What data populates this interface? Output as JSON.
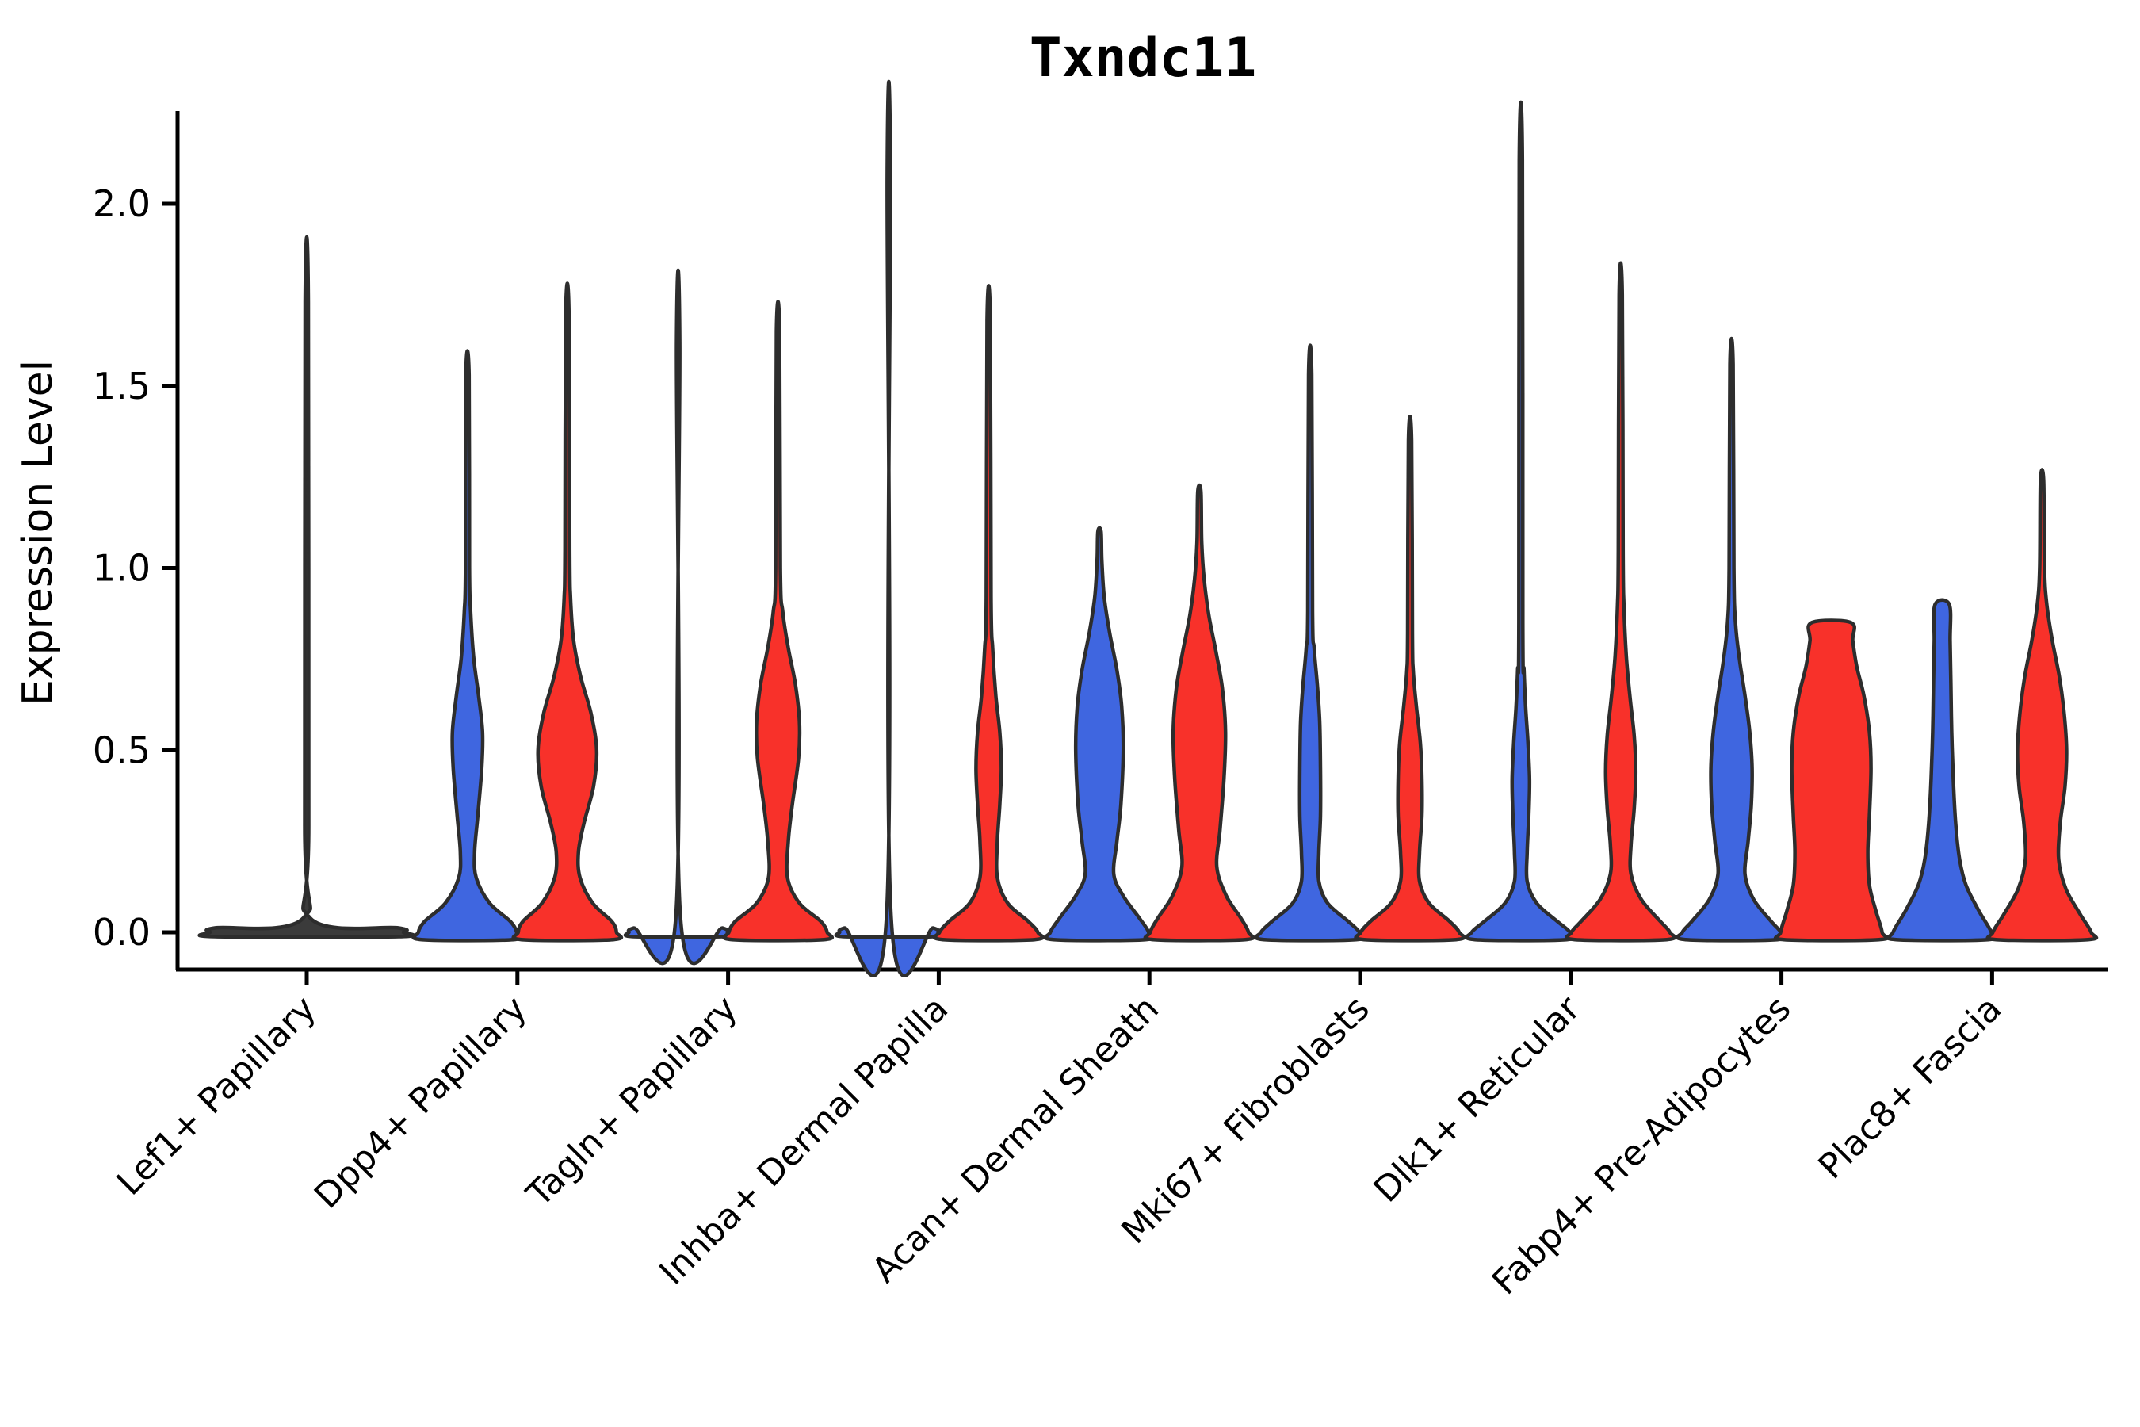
{
  "chart_data": {
    "type": "violin",
    "title": "Txndc11",
    "ylabel": "Expression Level",
    "xlabel": "",
    "yticks": [
      "0.0",
      "0.5",
      "1.0",
      "1.5",
      "2.0"
    ],
    "ytick_values": [
      0.0,
      0.5,
      1.0,
      1.5,
      2.0
    ],
    "ylim": [
      -0.1,
      2.26
    ],
    "grid": false,
    "legend": "none",
    "colors": {
      "blue": "#3F66E0",
      "red": "#F8312A",
      "single_dark": "#3B3B3B",
      "outline": "#2D2D2D",
      "axis": "#000000"
    },
    "categories": [
      "Lef1+ Papillary",
      "Dpp4+ Papillary",
      "Tagln+ Papillary",
      "Inhba+ Dermal Papilla",
      "Acan+ Dermal Sheath",
      "Mki67+ Fibroblasts",
      "Dlk1+ Reticular",
      "Fabp4+ Pre-Adipocytes",
      "Plac8+ Fascia"
    ],
    "series": [
      {
        "name": "blue",
        "max_expression": [
          1.73,
          1.53,
          1.62,
          2.08,
          1.1,
          1.53,
          2.12,
          1.56,
          0.9
        ]
      },
      {
        "name": "red",
        "max_expression": [
          null,
          1.7,
          1.65,
          1.68,
          1.21,
          1.35,
          1.75,
          0.85,
          1.24
        ]
      }
    ],
    "violins": [
      {
        "category": "Lef1+ Papillary",
        "side": "center",
        "color": "single_dark",
        "max": 1.73,
        "flat_top": false,
        "profile": [
          [
            -0.012,
            116
          ],
          [
            0,
            122
          ],
          [
            0.012,
            116
          ],
          [
            0.04,
            4
          ],
          [
            0.3,
            2.5
          ],
          [
            1.73,
            2
          ]
        ]
      },
      {
        "category": "Dpp4+ Papillary",
        "side": "left",
        "color": "blue",
        "max": 1.53,
        "flat_top": false,
        "profile": [
          [
            -0.02,
            58
          ],
          [
            0,
            62
          ],
          [
            0.03,
            54
          ],
          [
            0.08,
            28
          ],
          [
            0.15,
            11
          ],
          [
            0.22,
            9
          ],
          [
            0.32,
            13
          ],
          [
            0.45,
            18
          ],
          [
            0.55,
            19
          ],
          [
            0.65,
            14
          ],
          [
            0.75,
            8
          ],
          [
            0.88,
            4
          ],
          [
            1.0,
            2.5
          ],
          [
            1.53,
            2
          ]
        ]
      },
      {
        "category": "Dpp4+ Papillary",
        "side": "right",
        "color": "red",
        "max": 1.7,
        "flat_top": false,
        "profile": [
          [
            -0.02,
            58
          ],
          [
            0,
            62
          ],
          [
            0.03,
            56
          ],
          [
            0.08,
            32
          ],
          [
            0.15,
            16
          ],
          [
            0.22,
            14
          ],
          [
            0.3,
            21
          ],
          [
            0.4,
            33
          ],
          [
            0.5,
            37
          ],
          [
            0.6,
            30
          ],
          [
            0.7,
            17
          ],
          [
            0.8,
            8
          ],
          [
            0.92,
            4
          ],
          [
            1.05,
            3
          ],
          [
            1.7,
            2
          ]
        ]
      },
      {
        "category": "Tagln+ Papillary",
        "side": "left",
        "color": "blue",
        "max": 1.62,
        "flat_top": false,
        "profile": [
          [
            -0.012,
            56
          ],
          [
            0,
            62
          ],
          [
            0.012,
            56
          ],
          [
            0.04,
            3
          ],
          [
            1.62,
            2
          ]
        ]
      },
      {
        "category": "Tagln+ Papillary",
        "side": "right",
        "color": "red",
        "max": 1.65,
        "flat_top": false,
        "profile": [
          [
            -0.02,
            58
          ],
          [
            0,
            62
          ],
          [
            0.03,
            54
          ],
          [
            0.08,
            27
          ],
          [
            0.15,
            12
          ],
          [
            0.25,
            13
          ],
          [
            0.35,
            18
          ],
          [
            0.48,
            26
          ],
          [
            0.58,
            27
          ],
          [
            0.68,
            22
          ],
          [
            0.78,
            13
          ],
          [
            0.88,
            6
          ],
          [
            1.0,
            3
          ],
          [
            1.65,
            2
          ]
        ]
      },
      {
        "category": "Inhba+ Dermal Papilla",
        "side": "left",
        "color": "blue",
        "max": 2.08,
        "flat_top": false,
        "profile": [
          [
            -0.012,
            56
          ],
          [
            0,
            62
          ],
          [
            0.012,
            56
          ],
          [
            0.04,
            3
          ],
          [
            2.08,
            2
          ]
        ]
      },
      {
        "category": "Inhba+ Dermal Papilla",
        "side": "right",
        "color": "red",
        "max": 1.68,
        "flat_top": false,
        "profile": [
          [
            -0.02,
            58
          ],
          [
            0,
            62
          ],
          [
            0.03,
            50
          ],
          [
            0.08,
            24
          ],
          [
            0.15,
            11
          ],
          [
            0.25,
            11
          ],
          [
            0.35,
            14
          ],
          [
            0.45,
            16
          ],
          [
            0.55,
            14
          ],
          [
            0.65,
            9
          ],
          [
            0.78,
            5
          ],
          [
            0.92,
            3
          ],
          [
            1.68,
            2
          ]
        ]
      },
      {
        "category": "Acan+ Dermal Sheath",
        "side": "left",
        "color": "blue",
        "max": 1.1,
        "flat_top": false,
        "profile": [
          [
            -0.02,
            58
          ],
          [
            0,
            62
          ],
          [
            0.04,
            50
          ],
          [
            0.1,
            30
          ],
          [
            0.16,
            18
          ],
          [
            0.25,
            22
          ],
          [
            0.35,
            27
          ],
          [
            0.5,
            30
          ],
          [
            0.62,
            28
          ],
          [
            0.72,
            22
          ],
          [
            0.82,
            13
          ],
          [
            0.92,
            6
          ],
          [
            1.02,
            3
          ],
          [
            1.1,
            2
          ]
        ]
      },
      {
        "category": "Acan+ Dermal Sheath",
        "side": "right",
        "color": "red",
        "max": 1.21,
        "flat_top": false,
        "profile": [
          [
            -0.02,
            58
          ],
          [
            0,
            62
          ],
          [
            0.04,
            52
          ],
          [
            0.1,
            34
          ],
          [
            0.18,
            22
          ],
          [
            0.28,
            26
          ],
          [
            0.42,
            31
          ],
          [
            0.55,
            33
          ],
          [
            0.67,
            29
          ],
          [
            0.77,
            21
          ],
          [
            0.87,
            12
          ],
          [
            0.97,
            6
          ],
          [
            1.07,
            3
          ],
          [
            1.21,
            2
          ]
        ]
      },
      {
        "category": "Mki67+ Fibroblasts",
        "side": "left",
        "color": "blue",
        "max": 1.53,
        "flat_top": false,
        "profile": [
          [
            -0.02,
            58
          ],
          [
            0,
            62
          ],
          [
            0.03,
            48
          ],
          [
            0.08,
            22
          ],
          [
            0.14,
            11
          ],
          [
            0.22,
            11
          ],
          [
            0.32,
            13
          ],
          [
            0.45,
            13
          ],
          [
            0.58,
            12
          ],
          [
            0.68,
            9
          ],
          [
            0.78,
            5
          ],
          [
            0.88,
            3
          ],
          [
            1.53,
            2
          ]
        ]
      },
      {
        "category": "Mki67+ Fibroblasts",
        "side": "right",
        "color": "red",
        "max": 1.35,
        "flat_top": false,
        "profile": [
          [
            -0.02,
            58
          ],
          [
            0,
            62
          ],
          [
            0.03,
            50
          ],
          [
            0.08,
            24
          ],
          [
            0.14,
            12
          ],
          [
            0.22,
            12
          ],
          [
            0.32,
            15
          ],
          [
            0.42,
            15
          ],
          [
            0.52,
            13
          ],
          [
            0.62,
            8
          ],
          [
            0.72,
            4
          ],
          [
            0.82,
            3
          ],
          [
            1.35,
            2
          ]
        ]
      },
      {
        "category": "Dlk1+ Reticular",
        "side": "left",
        "color": "blue",
        "max": 2.12,
        "flat_top": false,
        "profile": [
          [
            -0.02,
            58
          ],
          [
            0,
            62
          ],
          [
            0.03,
            46
          ],
          [
            0.08,
            20
          ],
          [
            0.14,
            8
          ],
          [
            0.22,
            8
          ],
          [
            0.32,
            10
          ],
          [
            0.42,
            11
          ],
          [
            0.52,
            9
          ],
          [
            0.62,
            6
          ],
          [
            0.72,
            4
          ],
          [
            0.85,
            2.5
          ],
          [
            2.12,
            2
          ]
        ]
      },
      {
        "category": "Dlk1+ Reticular",
        "side": "right",
        "color": "red",
        "max": 1.75,
        "flat_top": false,
        "profile": [
          [
            -0.02,
            58
          ],
          [
            0,
            62
          ],
          [
            0.03,
            50
          ],
          [
            0.09,
            26
          ],
          [
            0.16,
            13
          ],
          [
            0.24,
            13
          ],
          [
            0.34,
            17
          ],
          [
            0.44,
            19
          ],
          [
            0.54,
            17
          ],
          [
            0.64,
            12
          ],
          [
            0.76,
            7
          ],
          [
            0.9,
            4
          ],
          [
            1.05,
            3
          ],
          [
            1.75,
            2
          ]
        ]
      },
      {
        "category": "Fabp4+ Pre-Adipocytes",
        "side": "left",
        "color": "blue",
        "max": 1.56,
        "flat_top": false,
        "profile": [
          [
            -0.02,
            58
          ],
          [
            0,
            62
          ],
          [
            0.03,
            50
          ],
          [
            0.09,
            28
          ],
          [
            0.16,
            17
          ],
          [
            0.25,
            21
          ],
          [
            0.35,
            25
          ],
          [
            0.45,
            26
          ],
          [
            0.55,
            23
          ],
          [
            0.65,
            17
          ],
          [
            0.75,
            10
          ],
          [
            0.85,
            5
          ],
          [
            1.0,
            3
          ],
          [
            1.56,
            2
          ]
        ]
      },
      {
        "category": "Fabp4+ Pre-Adipocytes",
        "side": "right",
        "color": "red",
        "max": 0.85,
        "flat_top": true,
        "profile": [
          [
            -0.02,
            60
          ],
          [
            0,
            64
          ],
          [
            0.06,
            56
          ],
          [
            0.13,
            48
          ],
          [
            0.22,
            46
          ],
          [
            0.32,
            48
          ],
          [
            0.45,
            50
          ],
          [
            0.55,
            48
          ],
          [
            0.65,
            41
          ],
          [
            0.73,
            32
          ],
          [
            0.8,
            27
          ],
          [
            0.85,
            25
          ]
        ]
      },
      {
        "category": "Plac8+ Fascia",
        "side": "left",
        "color": "blue",
        "max": 0.9,
        "flat_top": true,
        "profile": [
          [
            -0.02,
            58
          ],
          [
            0,
            62
          ],
          [
            0.06,
            46
          ],
          [
            0.13,
            30
          ],
          [
            0.2,
            22
          ],
          [
            0.3,
            17
          ],
          [
            0.42,
            14
          ],
          [
            0.55,
            12
          ],
          [
            0.68,
            11
          ],
          [
            0.8,
            10
          ],
          [
            0.9,
            9
          ]
        ]
      },
      {
        "category": "Plac8+ Fascia",
        "side": "right",
        "color": "red",
        "max": 1.24,
        "flat_top": false,
        "profile": [
          [
            -0.02,
            58
          ],
          [
            0,
            62
          ],
          [
            0.05,
            48
          ],
          [
            0.12,
            30
          ],
          [
            0.2,
            21
          ],
          [
            0.3,
            23
          ],
          [
            0.4,
            29
          ],
          [
            0.5,
            31
          ],
          [
            0.6,
            28
          ],
          [
            0.7,
            22
          ],
          [
            0.8,
            13
          ],
          [
            0.9,
            6
          ],
          [
            1.0,
            3
          ],
          [
            1.24,
            2
          ]
        ]
      }
    ]
  }
}
